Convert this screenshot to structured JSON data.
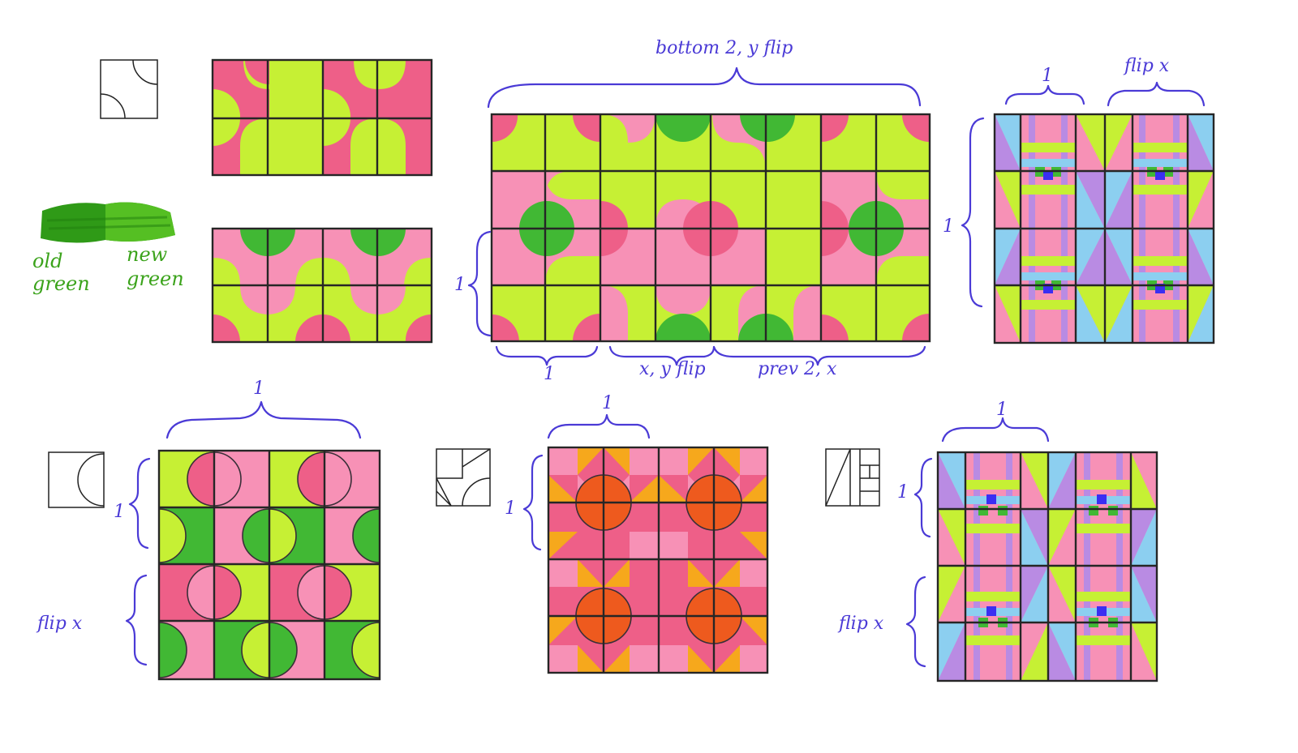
{
  "colors": {
    "lime": "#c6f034",
    "pink": "#f791b6",
    "hotpink": "#ee5f88",
    "green": "#41b834",
    "orange": "#ee5a1e",
    "amber": "#f6a81c",
    "sky": "#8ccff0",
    "purple": "#b98be3",
    "blue": "#3b2ef2",
    "ink": "#4a3ad6",
    "greenInk": "#3ba31b"
  },
  "swatch": {
    "old_label": "old",
    "old_label2": "green",
    "new_label": "new",
    "new_label2": "green"
  },
  "annotations": {
    "big_top": "bottom 2, y flip",
    "big_left": "1",
    "big_bottom_1": "1",
    "big_bottom_2": "x, y flip",
    "big_bottom_3": "prev 2, x",
    "weave_top_1": "1",
    "weave_top_2": "flip x",
    "weave_left": "1",
    "circles_top": "1",
    "circles_left_1": "1",
    "circles_left_2": "flip x",
    "star_top": "1",
    "star_left": "1",
    "weave2_top": "1",
    "weave2_left_1": "1",
    "weave2_left_2": "flip x"
  }
}
